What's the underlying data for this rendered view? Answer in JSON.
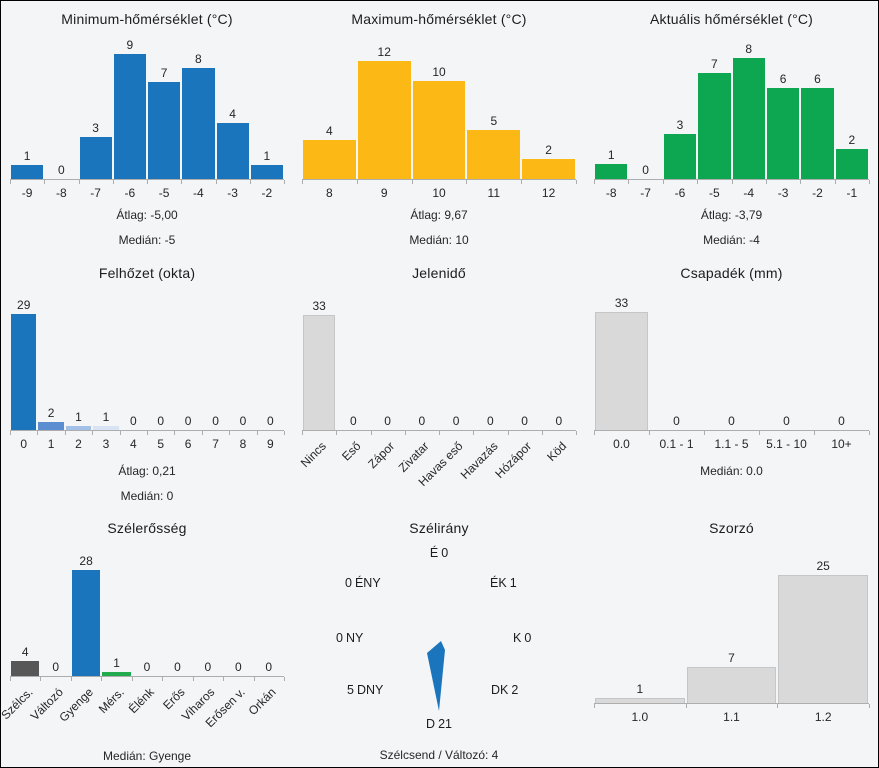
{
  "colors": {
    "background": "#f4f5f7",
    "blue": "#1b75bc",
    "yellow": "#fcb815",
    "green": "#0ca750",
    "gray_bar": "#d9d9d9",
    "dark_gray_bar": "#575757",
    "axis": "#adadad",
    "text": "#262626"
  },
  "chart_data": [
    {
      "type": "bar",
      "title": "Minimum-hőmérséklet (°C)",
      "categories": [
        "-9",
        "-8",
        "-7",
        "-6",
        "-5",
        "-4",
        "-3",
        "-2"
      ],
      "values": [
        1,
        0,
        3,
        9,
        7,
        8,
        4,
        1
      ],
      "color": "#1b75bc",
      "stats": [
        "Átlag: -5,00",
        "Medián: -5"
      ]
    },
    {
      "type": "bar",
      "title": "Maximum-hőmérséklet (°C)",
      "categories": [
        "8",
        "9",
        "10",
        "11",
        "12"
      ],
      "values": [
        4,
        12,
        10,
        5,
        2
      ],
      "color": "#fcb815",
      "stats": [
        "Átlag: 9,67",
        "Medián: 10"
      ]
    },
    {
      "type": "bar",
      "title": "Aktuális hőmérséklet (°C)",
      "categories": [
        "-8",
        "-7",
        "-6",
        "-5",
        "-4",
        "-3",
        "-2",
        "-1"
      ],
      "values": [
        1,
        0,
        3,
        7,
        8,
        6,
        6,
        2
      ],
      "color": "#0ca750",
      "stats": [
        "Átlag: -3,79",
        "Medián: -4"
      ]
    },
    {
      "type": "bar",
      "title": "Felhőzet (okta)",
      "categories": [
        "0",
        "1",
        "2",
        "3",
        "4",
        "5",
        "6",
        "7",
        "8",
        "9"
      ],
      "values": [
        29,
        2,
        1,
        1,
        0,
        0,
        0,
        0,
        0,
        0
      ],
      "color": "#1b75bc",
      "bar_colors": [
        "#1b75bc",
        "#5b8ed1",
        "#a3c1e6",
        "#d8e3f4"
      ],
      "stats": [
        "Átlag: 0,21",
        "Medián: 0"
      ]
    },
    {
      "type": "bar",
      "title": "Jelenidő",
      "categories": [
        "Nincs",
        "Eső",
        "Zápor",
        "Zivatar",
        "Havas eső",
        "Havazás",
        "Hózápor",
        "Köd"
      ],
      "values": [
        33,
        0,
        0,
        0,
        0,
        0,
        0,
        0
      ],
      "color": "#d9d9d9",
      "outlined": true,
      "rotated": true,
      "stats": []
    },
    {
      "type": "bar",
      "title": "Csapadék (mm)",
      "categories": [
        "0.0",
        "0.1 - 1",
        "1.1 - 5",
        "5.1 - 10",
        "10+"
      ],
      "values": [
        33,
        0,
        0,
        0,
        0
      ],
      "color": "#d9d9d9",
      "outlined": true,
      "stats": [
        "Medián: 0.0"
      ]
    },
    {
      "type": "bar",
      "title": "Szélerősség",
      "categories": [
        "Szélcs.",
        "Változó",
        "Gyenge",
        "Mérs.",
        "Élénk",
        "Erős",
        "Viharos",
        "Erősen v.",
        "Orkán"
      ],
      "values": [
        4,
        0,
        28,
        1,
        0,
        0,
        0,
        0,
        0
      ],
      "color": "#d9d9d9",
      "bar_colors": [
        "#575757",
        "#d9d9d9",
        "#1b75bc",
        "#22aa4e"
      ],
      "rotated": true,
      "stats": [
        "Medián: Gyenge"
      ]
    },
    {
      "type": "compass",
      "title": "Szélirány",
      "needle_color": "#1b75bc",
      "needle_direction": "D",
      "points": {
        "n": {
          "name": "É",
          "value": 0
        },
        "ne": {
          "name": "ÉK",
          "value": 1
        },
        "e": {
          "name": "K",
          "value": 0
        },
        "se": {
          "name": "DK",
          "value": 2
        },
        "s": {
          "name": "D",
          "value": 21
        },
        "sw": {
          "name": "DNY",
          "value": 5
        },
        "w": {
          "name": "NY",
          "value": 0
        },
        "nw": {
          "name": "ÉNY",
          "value": 0
        }
      },
      "stats": [
        "Szélcsend / Változó: 4"
      ]
    },
    {
      "type": "bar",
      "title": "Szorzó",
      "categories": [
        "1.0",
        "1.1",
        "1.2"
      ],
      "values": [
        1,
        7,
        25
      ],
      "color": "#d9d9d9",
      "outlined": true,
      "stats": []
    }
  ]
}
